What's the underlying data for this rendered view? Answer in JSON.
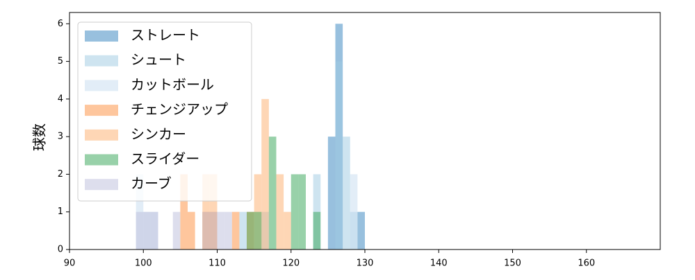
{
  "chart_data": {
    "type": "histogram",
    "ylabel": "球数",
    "xlim": [
      90,
      170
    ],
    "ylim": [
      0,
      6.3
    ],
    "xticks": [
      90,
      100,
      110,
      120,
      130,
      140,
      150,
      160
    ],
    "yticks": [
      0,
      1,
      2,
      3,
      4,
      5,
      6
    ],
    "legend": "upper left",
    "opacity": 0.5,
    "series": [
      {
        "name": "ストレート",
        "color": "#3182bd",
        "bins": [
          125,
          126,
          127,
          128,
          129,
          130
        ],
        "values": [
          3,
          6,
          0,
          0,
          1
        ]
      },
      {
        "name": "シュート",
        "color": "#9ecae1",
        "bins": [
          113,
          114,
          115,
          116,
          117,
          118,
          119,
          120,
          121,
          122,
          123,
          124,
          125,
          126,
          127,
          128,
          129
        ],
        "values": [
          1,
          0,
          0,
          1,
          0,
          0,
          0,
          0,
          0,
          0,
          2,
          0,
          0,
          5,
          3,
          1
        ]
      },
      {
        "name": "カットボール",
        "color": "#c6dbef",
        "bins": [
          99,
          100,
          102,
          128,
          129
        ],
        "values": [
          2,
          1,
          0,
          2
        ]
      },
      {
        "name": "チェンジアップ",
        "color": "#fd8d3c",
        "bins": [
          105,
          106,
          107,
          108,
          109,
          110,
          111,
          112,
          113,
          114,
          115
        ],
        "values": [
          2,
          1,
          0,
          1,
          1,
          0,
          0,
          1,
          0,
          1
        ]
      },
      {
        "name": "シンカー",
        "color": "#fdae6b",
        "bins": [
          108,
          109,
          110,
          115,
          116,
          117,
          118,
          119,
          120
        ],
        "values": [
          2,
          2,
          0,
          2,
          4,
          0,
          2,
          1
        ]
      },
      {
        "name": "スライダー",
        "color": "#31a354",
        "bins": [
          114,
          115,
          116,
          117,
          118,
          119,
          120,
          121,
          122,
          123,
          124
        ],
        "values": [
          1,
          1,
          0,
          3,
          0,
          0,
          2,
          2,
          0,
          1
        ]
      },
      {
        "name": "カーブ",
        "color": "#bcbddc",
        "bins": [
          99,
          100,
          101,
          102,
          104,
          105,
          108,
          109,
          110,
          111,
          112
        ],
        "values": [
          1,
          1,
          1,
          0,
          1,
          0,
          1,
          1,
          1,
          1
        ]
      }
    ]
  }
}
